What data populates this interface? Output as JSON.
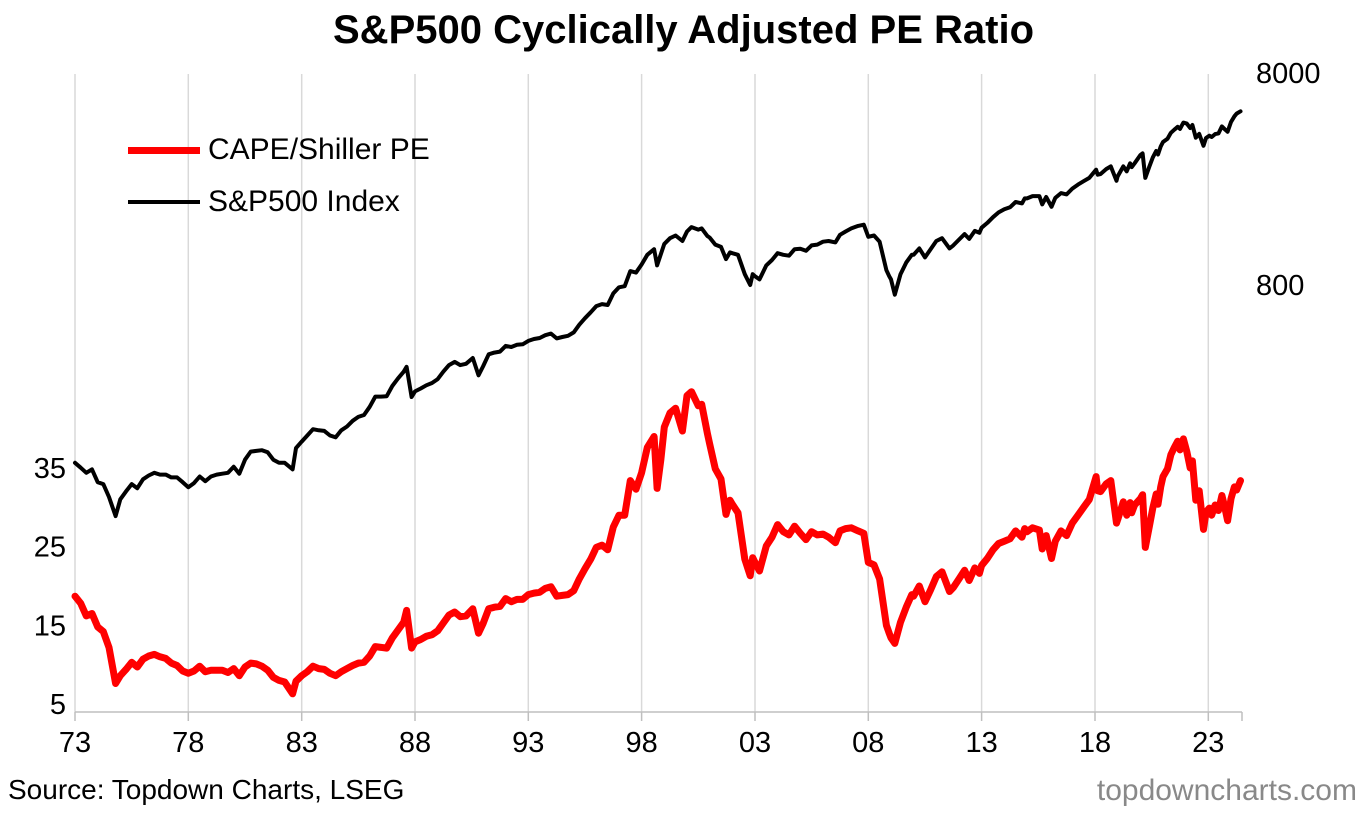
{
  "title": "S&P500 Cyclically Adjusted PE Ratio",
  "legend": {
    "items": [
      {
        "label": "CAPE/Shiller PE",
        "color": "#ff0000"
      },
      {
        "label": "S&P500 Index",
        "color": "#000000"
      }
    ]
  },
  "footer": {
    "source": "Source: Topdown Charts, LSEG",
    "watermark": "topdowncharts.com"
  },
  "colors": {
    "cape_line": "#ff0000",
    "index_line": "#000000",
    "gridline": "#d9d9d9",
    "axis_line": "#bfbfbf",
    "watermark": "#898989"
  },
  "chart_data": {
    "type": "line",
    "title": "S&P500 Cyclically Adjusted PE Ratio",
    "grid": "vertical-only",
    "legend_position": "top-left-inside",
    "x_axis": {
      "unit": "year",
      "tick_labels": [
        "73",
        "78",
        "83",
        "88",
        "93",
        "98",
        "03",
        "08",
        "13",
        "18",
        "23"
      ],
      "tick_years": [
        1973,
        1978,
        1983,
        1988,
        1993,
        1998,
        2003,
        2008,
        2013,
        2018,
        2023
      ],
      "range": [
        1973,
        2024.6
      ]
    },
    "left_axis": {
      "series": "CAPE/Shiller PE",
      "scale": "linear",
      "ticks": [
        5,
        15,
        25,
        35
      ],
      "range": [
        4,
        86
      ]
    },
    "right_axis": {
      "series": "S&P500 Index",
      "scale": "log",
      "ticks": [
        800,
        8000
      ],
      "range": [
        8,
        7900
      ]
    },
    "x": [
      1973.0,
      1973.25,
      1973.5,
      1973.75,
      1974.0,
      1974.25,
      1974.5,
      1974.79,
      1975.0,
      1975.25,
      1975.5,
      1975.75,
      1976.0,
      1976.25,
      1976.5,
      1976.75,
      1977.0,
      1977.25,
      1977.5,
      1977.75,
      1978.0,
      1978.25,
      1978.5,
      1978.75,
      1979.0,
      1979.25,
      1979.5,
      1979.75,
      1980.0,
      1980.25,
      1980.5,
      1980.75,
      1981.0,
      1981.25,
      1981.5,
      1981.75,
      1982.0,
      1982.25,
      1982.6,
      1982.75,
      1983.0,
      1983.25,
      1983.5,
      1983.75,
      1984.0,
      1984.25,
      1984.5,
      1984.75,
      1985.0,
      1985.25,
      1985.5,
      1985.75,
      1986.0,
      1986.25,
      1986.5,
      1986.75,
      1987.0,
      1987.25,
      1987.5,
      1987.63,
      1987.85,
      1988.0,
      1988.25,
      1988.5,
      1988.75,
      1989.0,
      1989.25,
      1989.5,
      1989.75,
      1990.0,
      1990.25,
      1990.55,
      1990.8,
      1991.0,
      1991.25,
      1991.5,
      1991.75,
      1992.0,
      1992.25,
      1992.5,
      1992.75,
      1993.0,
      1993.25,
      1993.5,
      1993.75,
      1994.0,
      1994.25,
      1994.5,
      1994.75,
      1995.0,
      1995.25,
      1995.5,
      1995.75,
      1996.0,
      1996.25,
      1996.5,
      1996.75,
      1997.0,
      1997.25,
      1997.5,
      1997.75,
      1998.0,
      1998.25,
      1998.55,
      1998.68,
      1998.85,
      1999.0,
      1999.25,
      1999.5,
      1999.8,
      2000.0,
      2000.2,
      2000.5,
      2000.65,
      2000.9,
      2001.0,
      2001.25,
      2001.5,
      2001.72,
      2001.9,
      2002.0,
      2002.25,
      2002.55,
      2002.79,
      2002.9,
      2003.0,
      2003.2,
      2003.5,
      2003.75,
      2004.0,
      2004.25,
      2004.5,
      2004.75,
      2005.0,
      2005.25,
      2005.5,
      2005.75,
      2006.0,
      2006.25,
      2006.55,
      2006.75,
      2007.0,
      2007.25,
      2007.55,
      2007.8,
      2008.0,
      2008.25,
      2008.5,
      2008.8,
      2008.92,
      2009.0,
      2009.17,
      2009.42,
      2009.67,
      2009.92,
      2010.0,
      2010.25,
      2010.5,
      2010.75,
      2011.0,
      2011.25,
      2011.58,
      2011.75,
      2012.0,
      2012.25,
      2012.45,
      2012.7,
      2012.9,
      2013.0,
      2013.25,
      2013.5,
      2013.75,
      2014.0,
      2014.25,
      2014.5,
      2014.78,
      2014.9,
      2015.0,
      2015.25,
      2015.55,
      2015.67,
      2015.85,
      2016.08,
      2016.25,
      2016.5,
      2016.75,
      2017.0,
      2017.25,
      2017.5,
      2017.75,
      2018.05,
      2018.12,
      2018.25,
      2018.5,
      2018.7,
      2018.95,
      2019.0,
      2019.25,
      2019.4,
      2019.55,
      2019.62,
      2019.75,
      2020.0,
      2020.1,
      2020.22,
      2020.4,
      2020.55,
      2020.7,
      2020.78,
      2020.9,
      2021.0,
      2021.2,
      2021.35,
      2021.5,
      2021.65,
      2021.75,
      2021.9,
      2022.05,
      2022.2,
      2022.3,
      2022.45,
      2022.6,
      2022.79,
      2022.9,
      2023.05,
      2023.15,
      2023.3,
      2023.45,
      2023.6,
      2023.72,
      2023.85,
      2024.0,
      2024.15,
      2024.25,
      2024.42
    ],
    "series": [
      {
        "name": "CAPE/Shiller PE",
        "axis": "left",
        "color": "#ff0000",
        "stroke_width": 7,
        "values": [
          18.7,
          17.8,
          16.2,
          16.5,
          14.8,
          14.2,
          12.2,
          7.6,
          8.6,
          9.4,
          10.3,
          9.7,
          10.7,
          11.1,
          11.3,
          11.0,
          10.8,
          10.2,
          9.9,
          9.2,
          8.9,
          9.2,
          9.8,
          9.1,
          9.3,
          9.3,
          9.3,
          9.0,
          9.5,
          8.6,
          9.7,
          10.2,
          10.1,
          9.8,
          9.3,
          8.4,
          8.0,
          7.8,
          6.3,
          7.9,
          8.6,
          9.1,
          9.8,
          9.5,
          9.4,
          8.9,
          8.6,
          9.1,
          9.5,
          9.9,
          10.2,
          10.3,
          11.1,
          12.3,
          12.2,
          12.1,
          13.4,
          14.4,
          15.4,
          16.9,
          12.1,
          12.9,
          13.2,
          13.6,
          13.8,
          14.3,
          15.3,
          16.3,
          16.7,
          16.1,
          16.2,
          17.1,
          14.0,
          15.2,
          17.1,
          17.3,
          17.4,
          18.4,
          18.0,
          18.3,
          18.3,
          18.9,
          19.1,
          19.2,
          19.7,
          19.9,
          18.7,
          18.8,
          18.9,
          19.4,
          20.9,
          22.2,
          23.4,
          24.9,
          25.2,
          24.6,
          27.5,
          29.0,
          29.0,
          33.4,
          32.3,
          34.4,
          37.6,
          39.0,
          32.4,
          36.1,
          40.2,
          42.0,
          42.6,
          39.7,
          44.2,
          44.7,
          42.9,
          43.1,
          39.4,
          38.1,
          34.9,
          33.6,
          29.1,
          30.9,
          30.4,
          29.3,
          23.4,
          21.3,
          23.6,
          23.0,
          21.9,
          25.1,
          26.2,
          27.8,
          26.9,
          26.5,
          27.6,
          26.7,
          25.9,
          26.9,
          26.5,
          26.6,
          26.2,
          25.5,
          27.0,
          27.3,
          27.4,
          27.0,
          26.7,
          23.0,
          22.7,
          20.9,
          15.0,
          14.0,
          13.4,
          12.7,
          15.4,
          17.3,
          18.9,
          18.7,
          20.0,
          18.0,
          19.5,
          21.2,
          21.8,
          19.3,
          19.8,
          20.9,
          22.0,
          20.7,
          22.3,
          21.6,
          22.6,
          23.5,
          24.6,
          25.4,
          25.7,
          26.0,
          27.0,
          26.2,
          27.3,
          26.9,
          27.4,
          27.1,
          24.7,
          26.4,
          23.5,
          25.7,
          27.0,
          26.4,
          28.0,
          29.0,
          30.0,
          31.0,
          33.9,
          32.1,
          32.0,
          33.0,
          33.4,
          28.0,
          28.4,
          30.7,
          29.0,
          30.6,
          29.3,
          30.3,
          31.1,
          31.6,
          24.9,
          27.6,
          29.9,
          31.7,
          30.4,
          32.6,
          33.9,
          34.9,
          36.7,
          37.6,
          38.4,
          37.3,
          38.7,
          37.1,
          35.0,
          35.9,
          30.9,
          32.1,
          27.2,
          29.4,
          29.9,
          29.0,
          30.3,
          29.6,
          31.5,
          30.1,
          28.3,
          31.1,
          32.6,
          32.2,
          33.4
        ]
      },
      {
        "name": "S&P500 Index",
        "axis": "right",
        "color": "#000000",
        "stroke_width": 4,
        "values": [
          116,
          110,
          104,
          108,
          94,
          92,
          80,
          65,
          78,
          85,
          92,
          88,
          97,
          101,
          104,
          102,
          102,
          99,
          99,
          94,
          89,
          93,
          100,
          95,
          100,
          102,
          103,
          104,
          111,
          103,
          120,
          131,
          132,
          133,
          130,
          120,
          116,
          116,
          108,
          136,
          146,
          156,
          167,
          165,
          164,
          156,
          153,
          165,
          172,
          183,
          191,
          195,
          213,
          238,
          238,
          239,
          267,
          290,
          312,
          329,
          237,
          252,
          260,
          269,
          276,
          288,
          312,
          335,
          347,
          335,
          340,
          362,
          300,
          330,
          377,
          384,
          388,
          413,
          408,
          418,
          420,
          436,
          445,
          450,
          464,
          472,
          448,
          455,
          461,
          478,
          520,
          558,
          595,
          636,
          650,
          644,
          730,
          780,
          790,
          930,
          915,
          1000,
          1110,
          1180,
          990,
          1120,
          1250,
          1330,
          1370,
          1290,
          1430,
          1500,
          1460,
          1480,
          1360,
          1340,
          1240,
          1210,
          1060,
          1140,
          1130,
          1110,
          900,
          800,
          900,
          880,
          850,
          990,
          1050,
          1130,
          1110,
          1100,
          1180,
          1185,
          1160,
          1230,
          1240,
          1280,
          1290,
          1270,
          1380,
          1430,
          1480,
          1520,
          1540,
          1350,
          1370,
          1280,
          940,
          880,
          850,
          720,
          900,
          1020,
          1110,
          1110,
          1190,
          1080,
          1180,
          1290,
          1330,
          1190,
          1230,
          1310,
          1390,
          1320,
          1440,
          1410,
          1490,
          1570,
          1670,
          1760,
          1820,
          1860,
          1970,
          1940,
          2050,
          2050,
          2100,
          2100,
          1920,
          2080,
          1870,
          2060,
          2170,
          2140,
          2280,
          2380,
          2470,
          2560,
          2800,
          2650,
          2670,
          2820,
          2900,
          2480,
          2600,
          2900,
          2750,
          3000,
          2880,
          3000,
          3280,
          3340,
          2560,
          2900,
          3200,
          3430,
          3300,
          3600,
          3780,
          3920,
          4180,
          4320,
          4460,
          4360,
          4670,
          4620,
          4400,
          4550,
          3960,
          4130,
          3630,
          3950,
          4050,
          3990,
          4120,
          4150,
          4480,
          4350,
          4230,
          4700,
          5000,
          5150,
          5280
        ]
      }
    ]
  }
}
